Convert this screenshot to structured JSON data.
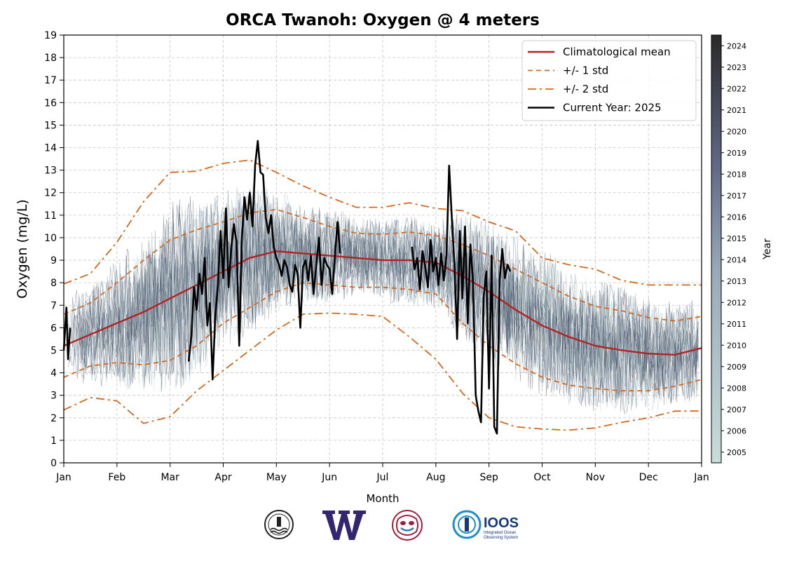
{
  "chart_data": {
    "type": "line",
    "title": "ORCA Twanoh: Oxygen @ 4 meters",
    "xlabel": "Month",
    "ylabel": "Oxygen (mg/L)",
    "ylim": [
      0,
      19
    ],
    "yticks": [
      0,
      1,
      2,
      3,
      4,
      5,
      6,
      7,
      8,
      9,
      10,
      11,
      12,
      13,
      14,
      15,
      16,
      17,
      18,
      19
    ],
    "xticks": [
      "Jan",
      "Feb",
      "Mar",
      "Apr",
      "May",
      "Jun",
      "Jul",
      "Aug",
      "Sep",
      "Oct",
      "Nov",
      "Dec",
      "Jan"
    ],
    "grid": true,
    "legend_position": "top-right",
    "colors": {
      "mean": "#b22222",
      "std": "#d2691e",
      "current": "#000000",
      "history_dark": "#2e3a55",
      "history_light": "#c5dcd8"
    },
    "series": [
      {
        "name": "Climatological mean",
        "style": "solid",
        "x": [
          0,
          0.5,
          1,
          1.5,
          2,
          2.5,
          3,
          3.5,
          4,
          4.5,
          5,
          5.5,
          6,
          6.5,
          7,
          7.5,
          8,
          8.5,
          9,
          9.5,
          10,
          10.5,
          11,
          11.5,
          12
        ],
        "values": [
          5.2,
          5.7,
          6.2,
          6.7,
          7.3,
          7.9,
          8.5,
          9.1,
          9.4,
          9.3,
          9.2,
          9.1,
          9.0,
          9.0,
          8.9,
          8.3,
          7.6,
          6.8,
          6.1,
          5.6,
          5.2,
          5.0,
          4.85,
          4.8,
          5.1
        ]
      },
      {
        "name": "+/- 1 std",
        "style": "dashed",
        "x": [
          0,
          0.5,
          1,
          1.5,
          2,
          2.5,
          3,
          3.5,
          4,
          4.5,
          5,
          5.5,
          6,
          6.5,
          7,
          7.5,
          8,
          8.5,
          9,
          9.5,
          10,
          10.5,
          11,
          11.5,
          12
        ],
        "values": [
          6.6,
          7.1,
          8.0,
          9.0,
          9.9,
          10.35,
          10.7,
          11.1,
          11.25,
          10.9,
          10.5,
          10.2,
          10.15,
          10.25,
          10.1,
          9.7,
          9.2,
          8.6,
          8.0,
          7.4,
          6.95,
          6.75,
          6.45,
          6.3,
          6.5
        ],
        "lower": [
          3.8,
          4.3,
          4.45,
          4.35,
          4.55,
          5.2,
          6.2,
          6.9,
          7.6,
          8.0,
          7.9,
          7.8,
          7.8,
          7.7,
          7.5,
          6.2,
          5.2,
          4.4,
          3.8,
          3.45,
          3.3,
          3.2,
          3.2,
          3.4,
          3.7
        ]
      },
      {
        "name": "+/- 2 std",
        "style": "dashdot",
        "x": [
          0,
          0.5,
          1,
          1.5,
          2,
          2.5,
          3,
          3.5,
          4,
          4.5,
          5,
          5.5,
          6,
          6.5,
          7,
          7.5,
          8,
          8.5,
          9,
          9.5,
          10,
          10.5,
          11,
          11.5,
          12
        ],
        "values": [
          7.95,
          8.4,
          9.8,
          11.6,
          12.9,
          12.95,
          13.3,
          13.45,
          12.9,
          12.3,
          11.8,
          11.35,
          11.35,
          11.55,
          11.3,
          11.2,
          10.7,
          10.3,
          9.1,
          8.8,
          8.6,
          8.1,
          7.9,
          7.9,
          7.9
        ],
        "lower": [
          2.35,
          2.9,
          2.75,
          1.75,
          2.05,
          3.2,
          4.1,
          5.0,
          5.9,
          6.6,
          6.65,
          6.6,
          6.5,
          5.6,
          4.6,
          3.1,
          2.0,
          1.6,
          1.5,
          1.45,
          1.55,
          1.8,
          2.0,
          2.3,
          2.3
        ]
      },
      {
        "name": "Current Year: 2025",
        "style": "solid-bold",
        "x": [
          0.0,
          0.05,
          0.08,
          0.12,
          2.35,
          2.4,
          2.45,
          2.5,
          2.55,
          2.6,
          2.65,
          2.7,
          2.75,
          2.8,
          2.85,
          2.9,
          2.95,
          3.0,
          3.05,
          3.1,
          3.15,
          3.2,
          3.25,
          3.3,
          3.35,
          3.4,
          3.45,
          3.5,
          3.55,
          3.6,
          3.65,
          3.7,
          3.75,
          3.8,
          3.85,
          3.9,
          3.95,
          4.0,
          4.05,
          4.1,
          4.15,
          4.2,
          4.25,
          4.3,
          4.35,
          4.4,
          4.45,
          4.5,
          4.55,
          4.6,
          4.65,
          4.7,
          4.75,
          4.8,
          4.85,
          4.9,
          4.95,
          5.0,
          5.05,
          5.1,
          5.15,
          5.2,
          6.55,
          6.6,
          6.65,
          6.7,
          6.75,
          6.8,
          6.85,
          6.9,
          6.95,
          7.0,
          7.05,
          7.1,
          7.15,
          7.2,
          7.25,
          7.3,
          7.35,
          7.4,
          7.45,
          7.5,
          7.55,
          7.6,
          7.65,
          7.7,
          7.75,
          7.8,
          7.85,
          7.9,
          7.95,
          8.0,
          8.05,
          8.1,
          8.15,
          8.2,
          8.25,
          8.3,
          8.35,
          8.4
        ],
        "values": [
          5.0,
          6.9,
          4.6,
          6.0,
          4.5,
          5.6,
          7.8,
          6.8,
          8.4,
          7.5,
          9.1,
          6.1,
          7.1,
          3.7,
          6.5,
          7.9,
          10.3,
          8.2,
          11.3,
          7.8,
          9.5,
          10.6,
          9.8,
          5.2,
          9.9,
          11.8,
          10.8,
          12.0,
          10.5,
          13.2,
          14.3,
          12.9,
          12.8,
          10.9,
          10.2,
          11.0,
          9.6,
          9.1,
          8.8,
          8.3,
          9.0,
          8.7,
          7.9,
          7.6,
          8.8,
          8.4,
          6.0,
          8.7,
          9.0,
          8.1,
          9.2,
          7.5,
          8.8,
          10.0,
          7.9,
          9.1,
          8.8,
          8.6,
          7.5,
          9.2,
          10.7,
          9.3,
          9.6,
          8.6,
          9.1,
          7.7,
          9.4,
          8.7,
          7.8,
          9.9,
          8.5,
          9.1,
          7.9,
          9.3,
          8.1,
          9.2,
          13.2,
          10.9,
          8.8,
          5.5,
          10.3,
          7.3,
          10.5,
          6.2,
          9.7,
          8.1,
          3.0,
          2.3,
          1.8,
          7.4,
          8.5,
          3.3,
          9.2,
          1.6,
          1.3,
          8.1,
          9.5,
          8.2,
          8.8,
          8.5
        ]
      }
    ],
    "colorbar": {
      "label": "Year",
      "ticks": [
        "2005",
        "2006",
        "2007",
        "2008",
        "2009",
        "2010",
        "2011",
        "2012",
        "2013",
        "2014",
        "2015",
        "2016",
        "2017",
        "2018",
        "2019",
        "2020",
        "2021",
        "2022",
        "2023",
        "2024"
      ]
    }
  },
  "logos": [
    "noaa-style-seal-logo",
    "uw-w-logo",
    "native-art-logo",
    "ioos-logo"
  ],
  "ioos_logo": {
    "wordmark": "IOOS",
    "tagline_1": "Integrated Ocean",
    "tagline_2": "Observing System"
  }
}
